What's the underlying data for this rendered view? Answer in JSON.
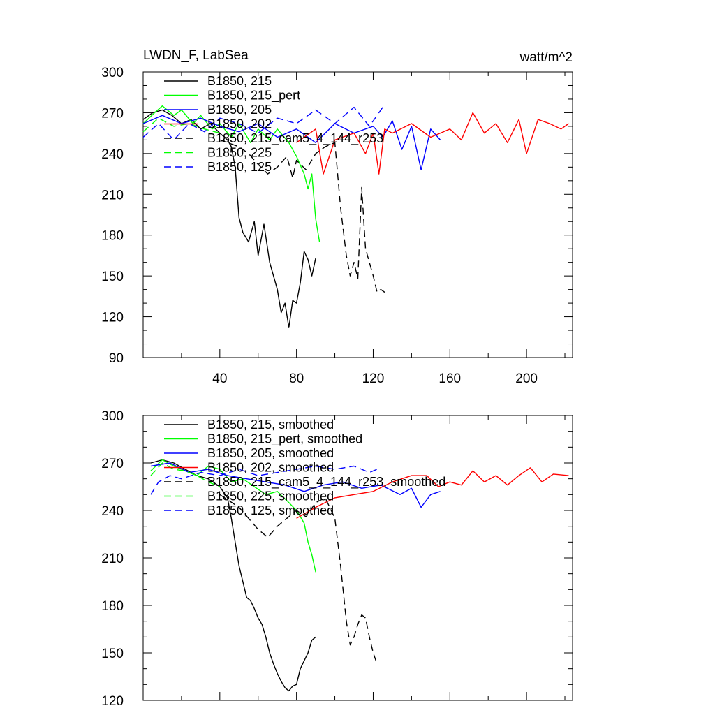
{
  "chart_data": [
    {
      "type": "line",
      "title_left": "LWDN_F, LabSea",
      "title_right": "watt/m^2",
      "xlim": [
        0,
        224
      ],
      "ylim": [
        90,
        300
      ],
      "yticks": [
        90,
        120,
        150,
        180,
        210,
        240,
        270,
        300
      ],
      "xticks": [
        40,
        80,
        120,
        160,
        200
      ],
      "series": [
        {
          "name": "B1850, 215",
          "color": "#000000",
          "dash": "solid",
          "x": [
            0,
            5,
            10,
            15,
            20,
            25,
            30,
            35,
            40,
            44,
            46,
            48,
            50,
            52,
            55,
            58,
            60,
            63,
            66,
            68,
            70,
            72,
            74,
            76,
            78,
            80,
            82,
            84,
            86,
            88,
            90
          ],
          "y": [
            265,
            270,
            272,
            268,
            262,
            265,
            258,
            262,
            255,
            250,
            245,
            230,
            193,
            182,
            175,
            190,
            165,
            188,
            160,
            150,
            140,
            123,
            130,
            112,
            132,
            130,
            145,
            168,
            162,
            150,
            163
          ]
        },
        {
          "name": "B1850, 215_pert",
          "color": "#00ff00",
          "dash": "solid",
          "x": [
            0,
            6,
            10,
            16,
            20,
            26,
            30,
            36,
            40,
            46,
            50,
            56,
            60,
            66,
            70,
            76,
            80,
            84,
            86,
            88,
            90,
            92
          ],
          "y": [
            262,
            270,
            275,
            268,
            272,
            262,
            268,
            258,
            262,
            252,
            262,
            248,
            258,
            250,
            258,
            248,
            238,
            225,
            214,
            225,
            192,
            175
          ]
        },
        {
          "name": "B1850, 205",
          "color": "#0000ff",
          "dash": "solid",
          "x": [
            0,
            10,
            20,
            30,
            40,
            50,
            60,
            70,
            80,
            90,
            100,
            110,
            120,
            125,
            130,
            135,
            140,
            145,
            150,
            155
          ],
          "y": [
            262,
            268,
            262,
            266,
            260,
            256,
            262,
            252,
            258,
            248,
            262,
            255,
            260,
            252,
            264,
            243,
            260,
            228,
            258,
            250
          ]
        },
        {
          "name": "B1850, 202",
          "color": "#ff0000",
          "dash": "solid",
          "x": [
            80,
            90,
            94,
            100,
            110,
            116,
            120,
            123,
            126,
            130,
            140,
            150,
            160,
            166,
            172,
            178,
            184,
            190,
            196,
            200,
            206,
            212,
            218,
            222
          ],
          "y": [
            248,
            258,
            225,
            250,
            255,
            240,
            255,
            225,
            258,
            255,
            262,
            252,
            258,
            250,
            270,
            255,
            262,
            248,
            265,
            240,
            265,
            262,
            258,
            262
          ]
        },
        {
          "name": "B1850, 215_cam5_4_144_r253",
          "color": "#000000",
          "dash": "dashed",
          "x": [
            40,
            50,
            55,
            60,
            65,
            70,
            75,
            78,
            80,
            85,
            90,
            95,
            100,
            103,
            106,
            108,
            110,
            112,
            114,
            116,
            118,
            120,
            122,
            124,
            126
          ],
          "y": [
            250,
            245,
            240,
            232,
            225,
            230,
            238,
            222,
            235,
            228,
            240,
            245,
            248,
            200,
            165,
            150,
            160,
            148,
            215,
            170,
            160,
            150,
            138,
            140,
            138
          ]
        },
        {
          "name": "B1850, 225",
          "color": "#00ff00",
          "dash": "dashed",
          "x": [
            0,
            8,
            16,
            24,
            32,
            40
          ],
          "y": [
            256,
            266,
            260,
            262,
            258,
            255
          ]
        },
        {
          "name": "B1850, 125",
          "color": "#0000ff",
          "dash": "dashed",
          "x": [
            0,
            8,
            16,
            24,
            32,
            40,
            50,
            60,
            70,
            80,
            90,
            100,
            110,
            118,
            122,
            126
          ],
          "y": [
            252,
            262,
            250,
            262,
            256,
            266,
            262,
            255,
            266,
            262,
            272,
            262,
            274,
            260,
            268,
            276
          ]
        }
      ]
    },
    {
      "type": "line",
      "xlim": [
        0,
        224
      ],
      "ylim": [
        120,
        300
      ],
      "yticks": [
        120,
        150,
        180,
        210,
        240,
        270,
        300
      ],
      "series": [
        {
          "name": "B1850, 215, smoothed",
          "color": "#000000",
          "dash": "solid",
          "x": [
            4,
            10,
            16,
            22,
            28,
            34,
            40,
            44,
            46,
            48,
            50,
            52,
            54,
            56,
            58,
            60,
            62,
            64,
            66,
            68,
            70,
            72,
            74,
            76,
            78,
            80,
            82,
            84,
            86,
            88,
            90
          ],
          "y": [
            270,
            272,
            270,
            266,
            262,
            260,
            255,
            248,
            235,
            220,
            205,
            195,
            185,
            183,
            178,
            172,
            168,
            160,
            150,
            143,
            137,
            132,
            128,
            126,
            129,
            130,
            140,
            145,
            150,
            158,
            160
          ]
        },
        {
          "name": "B1850, 215_pert, smoothed",
          "color": "#00ff00",
          "dash": "solid",
          "x": [
            4,
            10,
            16,
            22,
            28,
            34,
            40,
            46,
            52,
            58,
            64,
            70,
            76,
            80,
            84,
            86,
            88,
            90
          ],
          "y": [
            265,
            272,
            268,
            265,
            262,
            268,
            266,
            258,
            260,
            255,
            250,
            252,
            245,
            240,
            232,
            220,
            212,
            201
          ]
        },
        {
          "name": "B1850, 205, smoothed",
          "color": "#0000ff",
          "dash": "solid",
          "x": [
            4,
            14,
            24,
            34,
            44,
            54,
            64,
            74,
            84,
            94,
            104,
            114,
            124,
            134,
            140,
            145,
            150,
            155
          ],
          "y": [
            268,
            270,
            264,
            266,
            262,
            260,
            258,
            256,
            252,
            256,
            258,
            254,
            256,
            250,
            254,
            242,
            250,
            252
          ]
        },
        {
          "name": "B1850, 202, smoothed",
          "color": "#ff0000",
          "dash": "solid",
          "x": [
            80,
            90,
            100,
            110,
            120,
            130,
            140,
            148,
            154,
            160,
            166,
            172,
            178,
            184,
            190,
            196,
            202,
            208,
            214,
            222
          ],
          "y": [
            235,
            242,
            248,
            250,
            252,
            258,
            262,
            262,
            255,
            258,
            256,
            265,
            258,
            262,
            256,
            262,
            267,
            258,
            263,
            262
          ]
        },
        {
          "name": "B1850, 215_cam5_4_144_r253, smoothed",
          "color": "#000000",
          "dash": "dashed",
          "x": [
            40,
            50,
            55,
            60,
            65,
            70,
            75,
            80,
            85,
            90,
            95,
            100,
            103,
            106,
            108,
            110,
            112,
            114,
            116,
            118,
            120,
            122
          ],
          "y": [
            250,
            242,
            235,
            228,
            223,
            230,
            235,
            240,
            236,
            245,
            248,
            235,
            205,
            170,
            155,
            160,
            168,
            174,
            172,
            160,
            150,
            143
          ]
        },
        {
          "name": "B1850, 225, smoothed",
          "color": "#00ff00",
          "dash": "dashed",
          "x": [
            4,
            10,
            16,
            22,
            28,
            34,
            40
          ],
          "y": [
            262,
            270,
            266,
            265,
            262,
            258,
            255
          ]
        },
        {
          "name": "B1850, 125, smoothed",
          "color": "#0000ff",
          "dash": "dashed",
          "x": [
            4,
            8,
            14,
            20,
            30,
            40,
            50,
            60,
            70,
            80,
            90,
            100,
            110,
            118,
            122
          ],
          "y": [
            250,
            258,
            262,
            260,
            264,
            262,
            266,
            262,
            264,
            266,
            268,
            266,
            268,
            264,
            266
          ]
        }
      ]
    }
  ]
}
